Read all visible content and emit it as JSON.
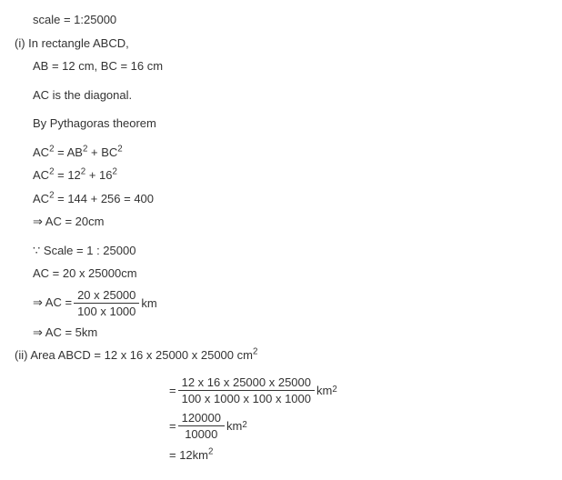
{
  "text_color": "#333333",
  "background_color": "#ffffff",
  "font_size": 13,
  "lines": {
    "scale": "scale = 1:25000",
    "part1_label": "(i) ",
    "part1_intro": "In rectangle ABCD,",
    "ab_bc": "AB = 12 cm, BC = 16 cm",
    "ac_diag": "AC is the diagonal.",
    "pyth": "By Pythagoras theorem",
    "eq1_lhs": "AC",
    "eq1_rhs": " = AB",
    "eq1_sup": "2",
    "plus": " + BC",
    "eq2": " = 12",
    "eq2b": " + 16",
    "eq3": " = 144 + 256 = 400",
    "eq4": "⇒ AC = 20cm",
    "scale2_pre": "∵",
    "scale2": " Scale = 1 : 25000",
    "ac_scale": "AC = 20 x 25000cm",
    "ac_frac_pre": "⇒ AC = ",
    "ac_frac_num": "20 x 25000",
    "ac_frac_den": "100 x 1000",
    "ac_frac_unit": "km",
    "ac_result": "⇒ AC = 5km",
    "part2": "(ii) Area ABCD = 12 x 16 x 25000 x 25000 cm",
    "area_frac1_num": "12 x 16 x 25000 x 25000",
    "area_frac1_den": "100 x 1000 x 100 x 1000",
    "area_km2": "km",
    "area_frac2_num": "120000",
    "area_frac2_den": "10000",
    "area_result": "= 12km",
    "eq_sign": "= "
  }
}
